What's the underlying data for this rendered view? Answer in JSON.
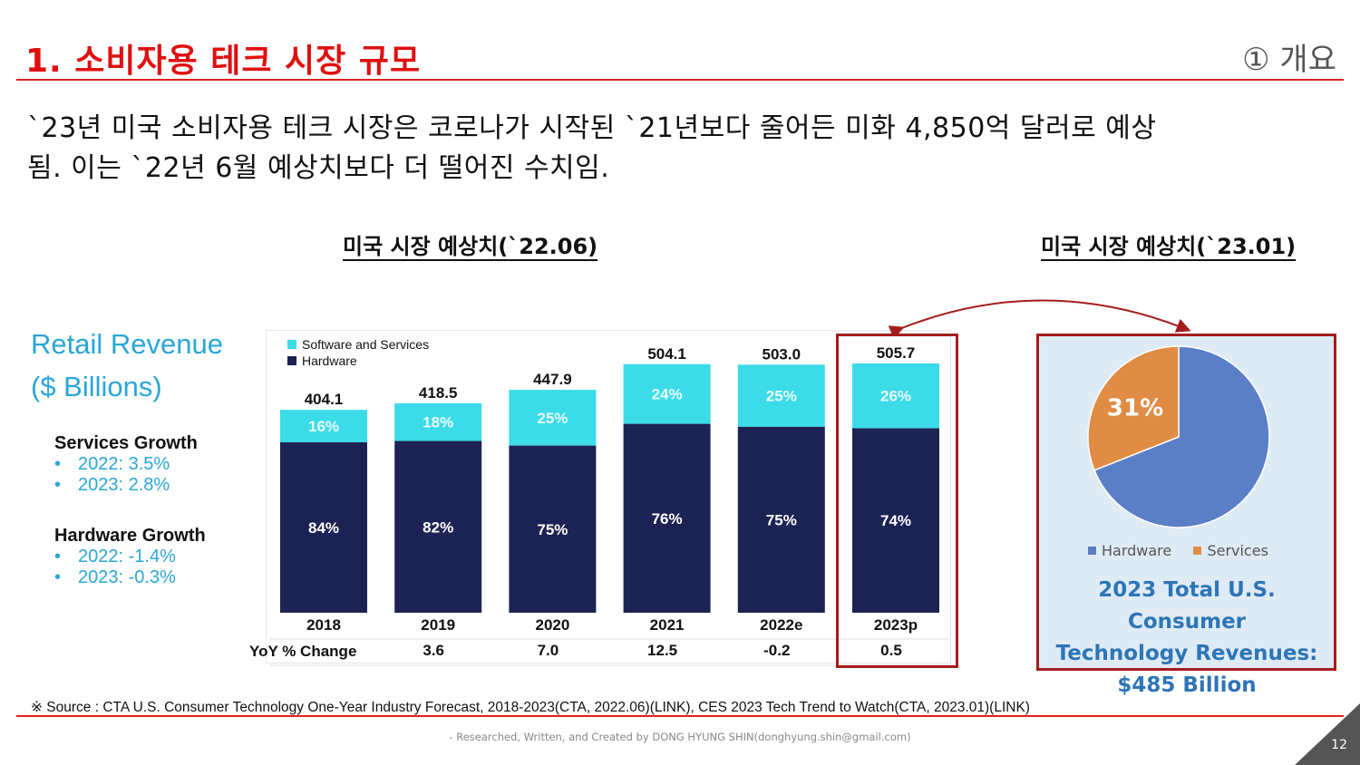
{
  "header": {
    "title": "1. 소비자용 테크 시장 규모",
    "section_tag": "① 개요"
  },
  "summary": {
    "line1": "`23년 미국 소비자용 테크 시장은 코로나가 시작된 `21년보다 줄어든 미화 4,850억 달러로 예상",
    "line2": "됨. 이는 `22년 6월 예상치보다 더 떨어진 수치임."
  },
  "subheads": {
    "left": "미국 시장 예상치(`22.06)",
    "right": "미국 시장 예상치(`23.01)"
  },
  "left_panel": {
    "title_line1": "Retail Revenue",
    "title_line2": "($ Billions)",
    "services_growth": {
      "heading": "Services Growth",
      "items": [
        "2022: 3.5%",
        "2023: 2.8%"
      ]
    },
    "hardware_growth": {
      "heading": "Hardware Growth",
      "items": [
        "2022: -1.4%",
        "2023: -0.3%"
      ]
    },
    "bullet": "•"
  },
  "colors": {
    "title_red": "#e01010",
    "services_cyan": "#3bdbe8",
    "hardware_navy": "#1c2354",
    "highlight_red": "#a51c1c",
    "pie_hardware": "#5b7fc7",
    "pie_services": "#e08c44",
    "caption_blue": "#2e75b6"
  },
  "chart_data": [
    {
      "type": "bar",
      "stacked": true,
      "title": "Retail Revenue ($ Billions)",
      "categories": [
        "2018",
        "2019",
        "2020",
        "2021",
        "2022e",
        "2023p"
      ],
      "totals": [
        "404.1",
        "418.5",
        "447.9",
        "504.1",
        "503.0",
        "505.7"
      ],
      "total_values": [
        404.1,
        418.5,
        447.9,
        504.1,
        503.0,
        505.7
      ],
      "series": [
        {
          "name": "Hardware",
          "share_pct": [
            84,
            82,
            75,
            76,
            75,
            74
          ],
          "labels": [
            "84%",
            "82%",
            "75%",
            "76%",
            "75%",
            "74%"
          ]
        },
        {
          "name": "Software and Services",
          "share_pct": [
            16,
            18,
            25,
            24,
            25,
            26
          ],
          "labels": [
            "16%",
            "18%",
            "25%",
            "24%",
            "25%",
            "26%"
          ]
        }
      ],
      "legend": [
        "Software and Services",
        "Hardware"
      ],
      "legend_position": "top-left",
      "yoy_label": "YoY % Change",
      "yoy_change": [
        "3.6",
        "7.0",
        "12.5",
        "-0.2",
        "0.5"
      ],
      "yoy_categories": [
        "2019",
        "2020",
        "2021",
        "2022e",
        "2023p"
      ],
      "highlighted_category": "2023p",
      "ylim": [
        0,
        520
      ],
      "grid": false
    },
    {
      "type": "pie",
      "title": "2023 Total U.S. Consumer Technology Revenues: $485 Billion",
      "slices": [
        {
          "name": "Hardware",
          "value": 69
        },
        {
          "name": "Services",
          "value": 31,
          "label": "31%"
        }
      ],
      "legend": [
        "Hardware",
        "Services"
      ],
      "legend_position": "bottom"
    }
  ],
  "pie_caption": {
    "line1": "2023 Total U.S. Consumer",
    "line2": "Technology Revenues:",
    "line3": "$485 Billion"
  },
  "footer": {
    "source": "※ Source : CTA U.S. Consumer Technology One-Year Industry Forecast, 2018-2023(CTA, 2022.06)(LINK), CES 2023 Tech Trend to Watch(CTA, 2023.01)(LINK)",
    "credit": "- Researched, Written, and Created by DONG HYUNG SHIN(donghyung.shin@gmail.com)",
    "page_number": "12"
  }
}
